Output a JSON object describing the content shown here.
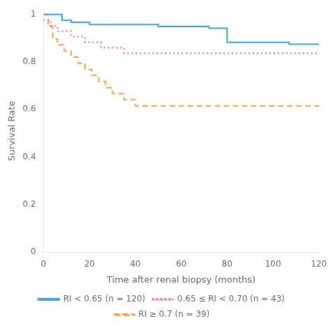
{
  "chart_data": {
    "type": "line",
    "xlabel": "Time after renal biopsy (months)",
    "ylabel": "Survival Rate",
    "xlim": [
      0,
      120
    ],
    "ylim": [
      0,
      1.02
    ],
    "xticks": [
      0,
      20,
      40,
      60,
      80,
      100,
      120
    ],
    "yticks": [
      0,
      0.2,
      0.4,
      0.6,
      0.8,
      1
    ],
    "grid": false,
    "legend": "bottom",
    "series": [
      {
        "name": "RI < 0.65 (n = 120)",
        "line_style": "solid",
        "x": [
          0,
          8,
          12,
          20,
          50,
          72,
          80,
          107,
          120
        ],
        "values": [
          1.0,
          0.975,
          0.967,
          0.958,
          0.95,
          0.942,
          0.883,
          0.875,
          0.875
        ]
      },
      {
        "name": "0.65 ≤ RI < 0.70 (n = 43)",
        "line_style": "dotted",
        "x": [
          0,
          3,
          6,
          12,
          18,
          25,
          35,
          43,
          120
        ],
        "values": [
          0.977,
          0.953,
          0.93,
          0.907,
          0.884,
          0.86,
          0.837,
          0.837,
          0.837
        ]
      },
      {
        "name": "RI ≥ 0.7 (n = 39)",
        "line_style": "dashed",
        "x": [
          0,
          2,
          4,
          6,
          9,
          12,
          15,
          18,
          21,
          24,
          27,
          30,
          35,
          40,
          45,
          50,
          120
        ],
        "values": [
          1.0,
          0.949,
          0.897,
          0.872,
          0.846,
          0.821,
          0.795,
          0.769,
          0.744,
          0.718,
          0.692,
          0.667,
          0.641,
          0.615,
          0.615,
          0.615,
          0.615
        ]
      }
    ]
  }
}
